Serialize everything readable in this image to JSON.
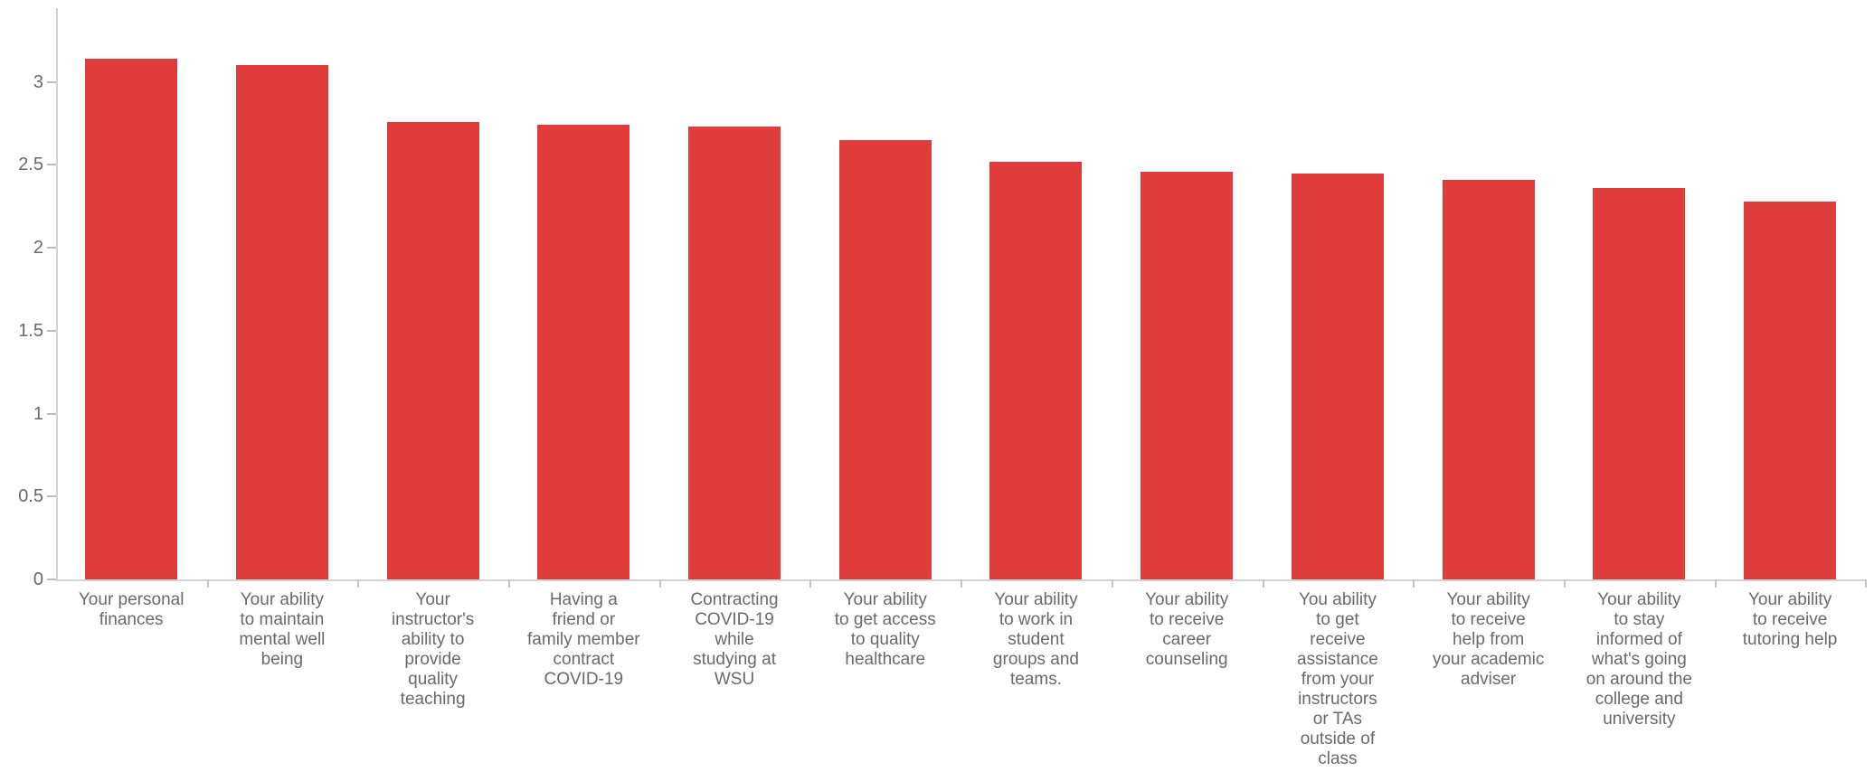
{
  "chart_data": {
    "type": "bar",
    "title": "",
    "xlabel": "",
    "ylabel": "",
    "categories": [
      "Your personal finances",
      "Your ability to maintain mental well being",
      "Your instructor's ability to provide quality teaching",
      "Having a friend or family member contract COVID-19",
      "Contracting COVID-19 while studying at WSU",
      "Your ability to get access to quality healthcare",
      "Your ability to work in student groups and teams.",
      "Your ability to receive career counseling",
      "You ability to get receive assistance from your instructors or TAs outside of class",
      "Your ability to receive help from your academic adviser",
      "Your ability to stay informed of what's going on around the college and university",
      "Your ability to receive tutoring help"
    ],
    "categories_wrapped": [
      "Your personal\nfinances",
      "Your ability\nto maintain\nmental well\nbeing",
      "Your\ninstructor's\nability to\nprovide\nquality\nteaching",
      "Having a\nfriend or\nfamily member\ncontract\nCOVID-19",
      "Contracting\nCOVID-19\nwhile\nstudying at\nWSU",
      "Your ability\nto get access\nto quality\nhealthcare",
      "Your ability\nto work in\nstudent\ngroups and\nteams.",
      "Your ability\nto receive\ncareer\ncounseling",
      "You ability\nto get\nreceive\nassistance\nfrom your\ninstructors\nor TAs\noutside of\nclass",
      "Your ability\nto receive\nhelp from\nyour academic\nadviser",
      "Your ability\nto stay\ninformed of\nwhat's going\non around the\ncollege and\nuniversity",
      "Your ability\nto receive\ntutoring help"
    ],
    "values": [
      3.14,
      3.1,
      2.76,
      2.74,
      2.73,
      2.65,
      2.52,
      2.46,
      2.45,
      2.41,
      2.36,
      2.28
    ],
    "ylim": [
      0,
      3.45
    ],
    "yticks": [
      0,
      0.5,
      1,
      1.5,
      2,
      2.5,
      3
    ],
    "ytick_labels": [
      "0",
      "0.5",
      "1",
      "1.5",
      "2",
      "2.5",
      "3"
    ],
    "grid": "off",
    "legend": "none",
    "bar_color": "#e13c3c",
    "axis_color": "#d4d4d4",
    "text_color": "#6a6a6a"
  }
}
